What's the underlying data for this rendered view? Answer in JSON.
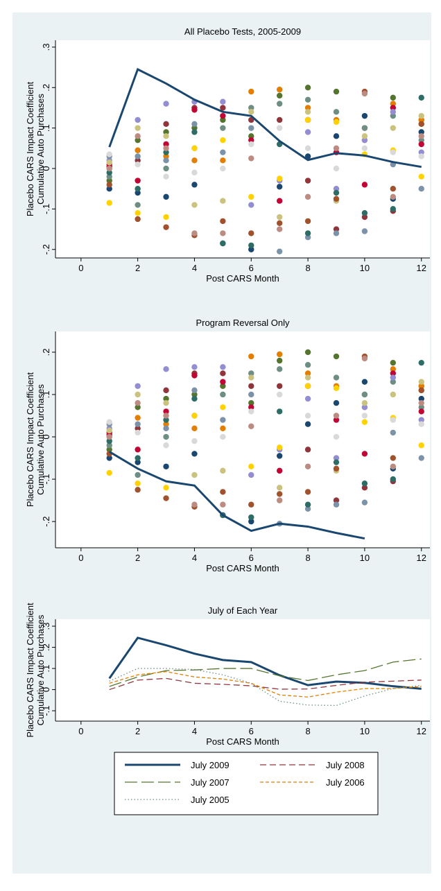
{
  "chart_data": [
    {
      "type": "scatter",
      "title": "All Placebo Tests, 2005-2009",
      "xlabel": "Post CARS Month",
      "ylabel": [
        "Placebo CARS Impact Coefficient",
        "Cumulative Auto Purchases"
      ],
      "x": [
        1,
        2,
        3,
        4,
        5,
        6,
        7,
        8,
        9,
        10,
        11,
        12
      ],
      "xlim": [
        -0.9,
        12.3
      ],
      "xticks": [
        0,
        2,
        4,
        6,
        8,
        10,
        12
      ],
      "ylim": [
        -0.221,
        0.317
      ],
      "yticks": [
        {
          "value": -0.2,
          "label": "-.2"
        },
        {
          "value": -0.1,
          "label": "-.1"
        },
        0,
        {
          "value": 0.1,
          "label": ".1"
        },
        {
          "value": 0.2,
          "label": ".2"
        },
        {
          "value": 0.3,
          "label": ".3"
        }
      ],
      "series": [
        {
          "color": "#1a476f",
          "style": "marker",
          "values": [
            -0.05,
            -0.06,
            -0.07,
            -0.04,
            -0.185,
            -0.2,
            -0.045,
            0.03,
            0.08,
            0.13,
            -0.075,
            0.09
          ]
        },
        {
          "color": "#90353b",
          "style": "marker",
          "values": [
            0.01,
            0.02,
            0.11,
            0.15,
            0.15,
            0.12,
            0.12,
            -0.03,
            -0.15,
            -0.12,
            -0.105,
            0.12
          ]
        },
        {
          "color": "#55752f",
          "style": "marker",
          "values": [
            -0.03,
            0.07,
            0.09,
            0.1,
            0.12,
            0.08,
            0.18,
            0.2,
            0.19,
            0.1,
            0.175,
            0.11
          ]
        },
        {
          "color": "#e37e00",
          "style": "marker",
          "values": [
            0.0,
            0.045,
            0.03,
            0.02,
            0.02,
            0.19,
            0.195,
            0.15,
            0.12,
            0.07,
            0.16,
            0.12
          ]
        },
        {
          "color": "#6e8e84",
          "style": "marker",
          "values": [
            -0.02,
            -0.09,
            0.0,
            0.05,
            0.1,
            0.15,
            0.16,
            0.17,
            0.14,
            0.1,
            0.13,
            0.07
          ]
        },
        {
          "color": "#c10534",
          "style": "marker",
          "values": [
            0.005,
            -0.03,
            0.06,
            0.145,
            0.13,
            0.07,
            -0.08,
            0.12,
            0.04,
            -0.04,
            0.15,
            0.06
          ]
        },
        {
          "color": "#938dd2",
          "style": "marker",
          "values": [
            0.02,
            0.12,
            0.16,
            0.165,
            0.165,
            -0.09,
            -0.03,
            0.09,
            -0.05,
            0.07,
            0.14,
            0.04
          ]
        },
        {
          "color": "#cac27e",
          "style": "marker",
          "values": [
            0.015,
            0.1,
            0.08,
            -0.09,
            -0.08,
            0.14,
            -0.12,
            0.14,
            -0.08,
            0.08,
            0.1,
            0.13
          ]
        },
        {
          "color": "#a0522d",
          "style": "marker",
          "values": [
            -0.04,
            -0.125,
            -0.145,
            -0.165,
            -0.13,
            -0.16,
            -0.135,
            -0.13,
            -0.075,
            0.19,
            -0.05,
            0.11
          ]
        },
        {
          "color": "#ffd200",
          "style": "marker",
          "values": [
            -0.085,
            -0.11,
            -0.12,
            0.05,
            0.07,
            -0.07,
            -0.025,
            0.12,
            0.115,
            0.035,
            0.045,
            -0.02
          ]
        },
        {
          "color": "#7b92a8",
          "style": "marker",
          "values": [
            0.03,
            0.03,
            0.02,
            0.11,
            0.04,
            0.1,
            -0.205,
            -0.17,
            -0.16,
            -0.155,
            0.01,
            -0.05
          ]
        },
        {
          "color": "#2d6d66",
          "style": "marker",
          "values": [
            -0.01,
            -0.05,
            0.04,
            0.09,
            -0.185,
            -0.19,
            0.06,
            -0.16,
            -0.06,
            -0.11,
            -0.1,
            0.175
          ]
        },
        {
          "color": "#bc8b81",
          "style": "marker",
          "values": [
            0.0,
            0.08,
            0.05,
            -0.16,
            -0.16,
            0.025,
            -0.15,
            -0.07,
            0.05,
            0.185,
            -0.07,
            0.08
          ]
        },
        {
          "color": "#d9d9d9",
          "style": "marker",
          "values": [
            0.035,
            0.01,
            -0.02,
            -0.01,
            0.0,
            0.06,
            0.1,
            0.05,
            0.0,
            0.05,
            0.04,
            0.03
          ]
        },
        {
          "color": "#1a476f",
          "style": "solid",
          "values": [
            0.053,
            0.245,
            0.21,
            0.17,
            0.14,
            0.13,
            0.068,
            0.021,
            0.038,
            0.032,
            0.016,
            0.004
          ]
        }
      ]
    },
    {
      "type": "scatter",
      "title": "Program Reversal Only",
      "xlabel": "Post CARS Month",
      "ylabel": [
        "Placebo CARS Impact Coefficient",
        "Cumulative Auto Purchases"
      ],
      "x": [
        1,
        2,
        3,
        4,
        5,
        6,
        7,
        8,
        9,
        10,
        11,
        12
      ],
      "xlim": [
        -0.9,
        12.3
      ],
      "xticks": [
        0,
        2,
        4,
        6,
        8,
        10,
        12
      ],
      "ylim": [
        -0.262,
        0.249
      ],
      "yticks": [
        {
          "value": -0.2,
          "label": "-.2"
        },
        {
          "value": -0.1,
          "label": "-.1"
        },
        0,
        {
          "value": 0.1,
          "label": ".1"
        },
        {
          "value": 0.2,
          "label": ".2"
        }
      ],
      "series": [
        {
          "color": "#1a476f",
          "style": "marker",
          "values": [
            -0.05,
            -0.06,
            -0.07,
            -0.04,
            -0.185,
            -0.2,
            -0.045,
            0.03,
            0.08,
            0.13,
            -0.075,
            0.09
          ]
        },
        {
          "color": "#90353b",
          "style": "marker",
          "values": [
            0.01,
            0.02,
            0.11,
            0.15,
            0.15,
            0.12,
            0.12,
            -0.03,
            -0.15,
            -0.12,
            -0.105,
            0.12
          ]
        },
        {
          "color": "#55752f",
          "style": "marker",
          "values": [
            -0.03,
            0.07,
            0.09,
            0.1,
            0.12,
            0.08,
            0.18,
            0.2,
            0.19,
            0.1,
            0.175,
            0.11
          ]
        },
        {
          "color": "#e37e00",
          "style": "marker",
          "values": [
            0.0,
            0.045,
            0.03,
            0.02,
            0.02,
            0.19,
            0.195,
            0.15,
            0.12,
            0.07,
            0.16,
            0.12
          ]
        },
        {
          "color": "#6e8e84",
          "style": "marker",
          "values": [
            -0.02,
            -0.09,
            0.0,
            0.05,
            0.1,
            0.15,
            0.16,
            0.17,
            0.14,
            0.1,
            0.13,
            0.07
          ]
        },
        {
          "color": "#c10534",
          "style": "marker",
          "values": [
            0.005,
            -0.03,
            0.06,
            0.145,
            0.13,
            0.07,
            -0.08,
            0.12,
            0.04,
            -0.04,
            0.15,
            0.06
          ]
        },
        {
          "color": "#938dd2",
          "style": "marker",
          "values": [
            0.02,
            0.12,
            0.16,
            0.165,
            0.165,
            -0.09,
            -0.03,
            0.09,
            -0.05,
            0.07,
            0.14,
            0.04
          ]
        },
        {
          "color": "#cac27e",
          "style": "marker",
          "values": [
            0.015,
            0.1,
            0.08,
            -0.09,
            -0.08,
            0.14,
            -0.12,
            0.14,
            -0.08,
            0.08,
            0.1,
            0.13
          ]
        },
        {
          "color": "#a0522d",
          "style": "marker",
          "values": [
            -0.04,
            -0.125,
            -0.145,
            -0.165,
            -0.13,
            -0.16,
            -0.135,
            -0.13,
            -0.075,
            0.19,
            -0.05,
            0.11
          ]
        },
        {
          "color": "#ffd200",
          "style": "marker",
          "values": [
            -0.085,
            -0.11,
            -0.12,
            0.05,
            0.07,
            -0.07,
            -0.025,
            0.12,
            0.115,
            0.035,
            0.045,
            -0.02
          ]
        },
        {
          "color": "#7b92a8",
          "style": "marker",
          "values": [
            0.03,
            0.03,
            0.02,
            0.11,
            0.04,
            0.1,
            -0.205,
            -0.17,
            -0.16,
            -0.155,
            0.01,
            -0.05
          ]
        },
        {
          "color": "#2d6d66",
          "style": "marker",
          "values": [
            -0.01,
            -0.05,
            0.04,
            0.09,
            -0.185,
            -0.19,
            0.06,
            -0.16,
            -0.06,
            -0.11,
            -0.1,
            0.175
          ]
        },
        {
          "color": "#bc8b81",
          "style": "marker",
          "values": [
            0.0,
            0.08,
            0.05,
            -0.16,
            -0.16,
            0.025,
            -0.15,
            -0.07,
            0.05,
            0.185,
            -0.07,
            0.08
          ]
        },
        {
          "color": "#d9d9d9",
          "style": "marker",
          "values": [
            0.035,
            0.01,
            -0.02,
            -0.01,
            0.0,
            0.06,
            0.1,
            0.05,
            0.0,
            0.05,
            0.04,
            0.03
          ]
        },
        {
          "color": "#1a476f",
          "style": "solid",
          "values": [
            -0.035,
            -0.075,
            -0.105,
            -0.115,
            -0.185,
            -0.222,
            -0.205,
            -0.212,
            -0.227,
            -0.24,
            null,
            null
          ]
        }
      ]
    },
    {
      "type": "line",
      "title": "July of Each Year",
      "xlabel": "Post CARS Month",
      "ylabel": [
        "Placebo CARS Impact Coefficient",
        "Cumulative Auto Purchases"
      ],
      "x": [
        1,
        2,
        3,
        4,
        5,
        6,
        7,
        8,
        9,
        10,
        11,
        12
      ],
      "xlim": [
        -0.9,
        12.3
      ],
      "xticks": [
        0,
        2,
        4,
        6,
        8,
        10,
        12
      ],
      "ylim": [
        -0.149,
        0.333
      ],
      "yticks": [
        {
          "value": -0.1,
          "label": "-.1"
        },
        0,
        {
          "value": 0.1,
          "label": ".1"
        },
        {
          "value": 0.2,
          "label": ".2"
        },
        {
          "value": 0.3,
          "label": ".3"
        }
      ],
      "series": [
        {
          "name": "July 2009",
          "color": "#1a476f",
          "style": "solid",
          "values": [
            0.053,
            0.245,
            0.21,
            0.17,
            0.14,
            0.13,
            0.068,
            0.021,
            0.038,
            0.032,
            0.016,
            0.004
          ]
        },
        {
          "name": "July 2008",
          "color": "#90353b",
          "style": "dash",
          "values": [
            0.0,
            0.045,
            0.053,
            0.03,
            0.025,
            0.018,
            0.002,
            0.003,
            0.02,
            0.035,
            0.04,
            0.045
          ]
        },
        {
          "name": "July 2007",
          "color": "#55752f",
          "style": "longdash",
          "values": [
            0.015,
            0.06,
            0.09,
            0.093,
            0.1,
            0.1,
            0.065,
            0.043,
            0.07,
            0.09,
            0.13,
            0.145
          ]
        },
        {
          "name": "July 2006",
          "color": "#e37e00",
          "style": "shortdash",
          "values": [
            0.03,
            0.07,
            0.085,
            0.06,
            0.05,
            0.03,
            -0.025,
            -0.035,
            -0.012,
            0.005,
            0.005,
            0.015
          ]
        },
        {
          "name": "July 2005",
          "color": "#6e8e84",
          "style": "dot",
          "values": [
            0.04,
            0.1,
            0.1,
            0.095,
            0.07,
            0.03,
            -0.055,
            -0.073,
            -0.075,
            -0.03,
            0.005,
            0.02
          ]
        }
      ]
    }
  ]
}
